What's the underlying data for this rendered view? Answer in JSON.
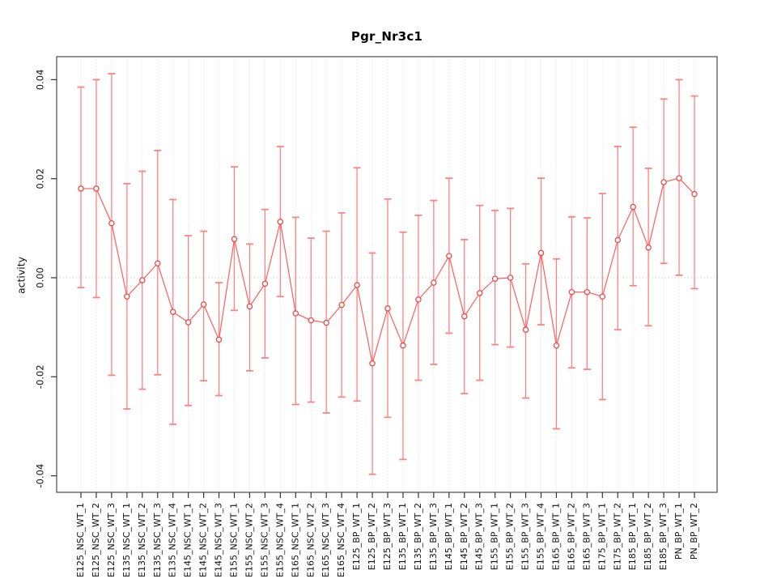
{
  "chart_data": {
    "type": "line",
    "title": "Pgr_Nr3c1",
    "xlabel": "",
    "ylabel": "activity",
    "ylim": [
      -0.0435,
      0.0445
    ],
    "yticks": [
      0.04,
      0.02,
      0,
      -0.02,
      -0.04
    ],
    "ytick_labels": [
      "0.04",
      "0.02",
      "0.00",
      "-0.02",
      "-0.04"
    ],
    "grid": {
      "vertical": "dotted gridline at every category",
      "horizontal": "dotted reference line at y=0"
    },
    "legend": "none",
    "error_bars": true,
    "marker": "open-circle",
    "categories": [
      "E125_NSC_WT_1",
      "E125_NSC_WT_2",
      "E125_NSC_WT_3",
      "E135_NSC_WT_1",
      "E135_NSC_WT_2",
      "E135_NSC_WT_3",
      "E135_NSC_WT_4",
      "E145_NSC_WT_1",
      "E145_NSC_WT_2",
      "E145_NSC_WT_3",
      "E155_NSC_WT_1",
      "E155_NSC_WT_2",
      "E155_NSC_WT_3",
      "E155_NSC_WT_4",
      "E165_NSC_WT_1",
      "E165_NSC_WT_2",
      "E165_NSC_WT_3",
      "E165_NSC_WT_4",
      "E125_BP_WT_1",
      "E125_BP_WT_2",
      "E125_BP_WT_3",
      "E135_BP_WT_1",
      "E135_BP_WT_2",
      "E135_BP_WT_3",
      "E145_BP_WT_1",
      "E145_BP_WT_2",
      "E145_BP_WT_3",
      "E155_BP_WT_1",
      "E155_BP_WT_2",
      "E155_BP_WT_3",
      "E155_BP_WT_4",
      "E165_BP_WT_1",
      "E165_BP_WT_2",
      "E165_BP_WT_3",
      "E175_BP_WT_1",
      "E175_BP_WT_2",
      "E185_BP_WT_1",
      "E185_BP_WT_2",
      "E185_BP_WT_3",
      "PN_BP_WT_1",
      "PN_BP_WT_2"
    ],
    "series": [
      {
        "name": "activity",
        "values": [
          0.018,
          0.018,
          0.011,
          -0.0038,
          -0.0005,
          0.0029,
          -0.0069,
          -0.009,
          -0.0054,
          -0.0125,
          0.0078,
          -0.0058,
          -0.0012,
          0.0113,
          -0.0072,
          -0.0086,
          -0.0091,
          -0.0055,
          -0.0015,
          -0.0173,
          -0.0062,
          -0.0137,
          -0.0044,
          -0.001,
          0.0044,
          -0.0078,
          -0.0031,
          -0.0002,
          0.0,
          -0.0105,
          0.005,
          -0.0137,
          -0.0029,
          -0.0029,
          -0.0038,
          0.0076,
          0.0143,
          0.0061,
          0.0193,
          0.0201,
          0.0169
        ],
        "err_high": [
          0.0385,
          0.04,
          0.0412,
          0.019,
          0.0215,
          0.0257,
          0.0158,
          0.0085,
          0.0094,
          -0.001,
          0.0224,
          0.0068,
          0.0138,
          0.0265,
          0.0122,
          0.008,
          0.0094,
          0.0131,
          0.0222,
          0.005,
          0.0159,
          0.0092,
          0.0126,
          0.0156,
          0.0201,
          0.0077,
          0.0146,
          0.0136,
          0.014,
          0.0028,
          0.0201,
          0.0038,
          0.0123,
          0.0121,
          0.017,
          0.0265,
          0.0304,
          0.0221,
          0.0361,
          0.04,
          0.0367
        ],
        "err_low": [
          -0.002,
          -0.004,
          -0.0197,
          -0.0265,
          -0.0225,
          -0.0196,
          -0.0296,
          -0.0258,
          -0.0208,
          -0.0238,
          -0.0066,
          -0.0188,
          -0.0162,
          -0.0038,
          -0.0256,
          -0.0251,
          -0.0273,
          -0.0241,
          -0.0249,
          -0.0397,
          -0.0282,
          -0.0367,
          -0.0207,
          -0.0175,
          -0.0112,
          -0.0234,
          -0.0207,
          -0.0135,
          -0.014,
          -0.0243,
          -0.0095,
          -0.0305,
          -0.0182,
          -0.0185,
          -0.0246,
          -0.0105,
          -0.0016,
          -0.0097,
          0.0029,
          0.0005,
          -0.0022
        ]
      }
    ],
    "style": {
      "line_color": "#ff5c5c",
      "marker_color": "#f04848",
      "errorbar_color": "#ff8282",
      "grid_color": "#dcdcdc",
      "zero_line_color": "#d0d0d0",
      "axis_color": "#333333",
      "border_color": "#4d4d4d",
      "text_color": "#111111",
      "title_color": "#000000",
      "background": "#ffffff"
    }
  }
}
